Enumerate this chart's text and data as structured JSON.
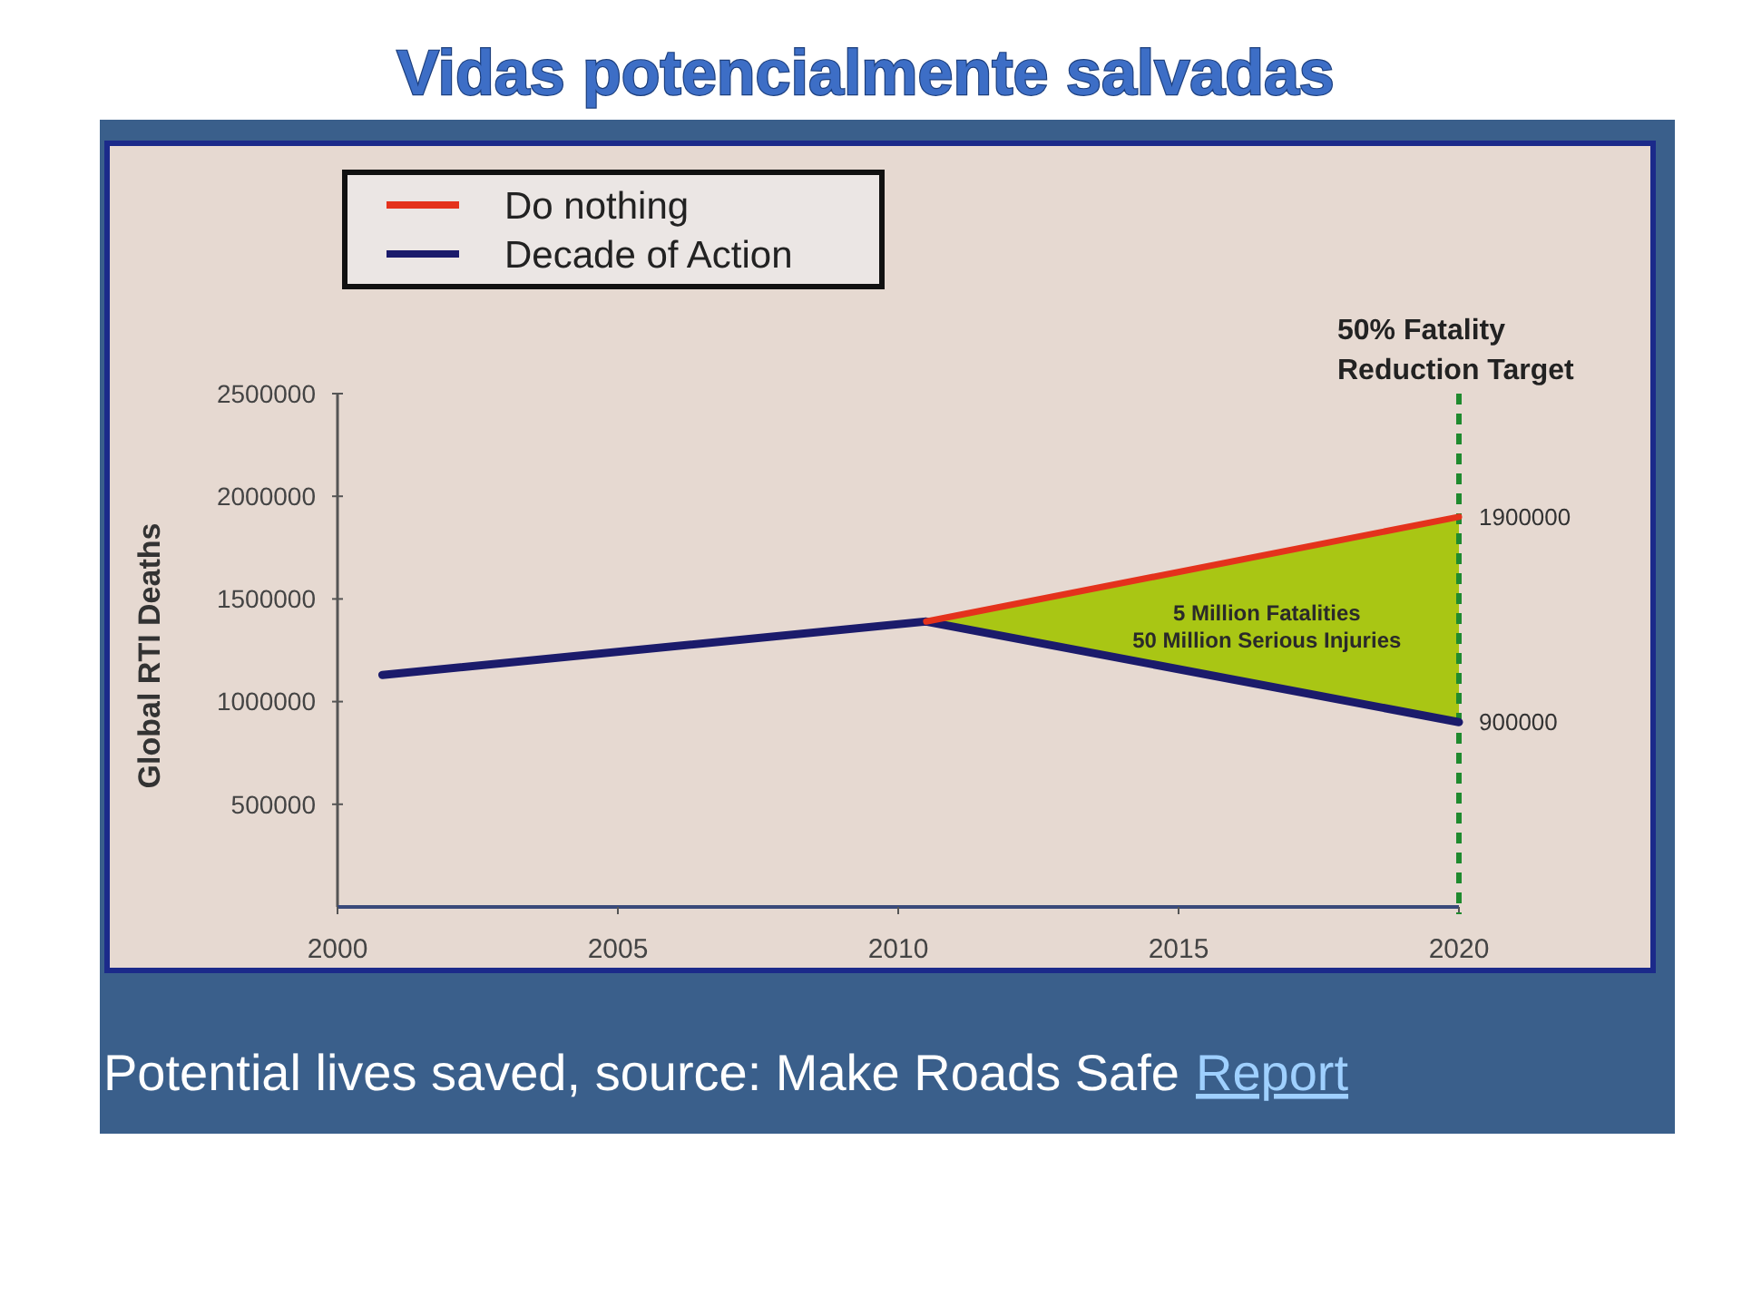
{
  "chart_data": {
    "type": "line",
    "title": "Vidas potencialmente salvadas",
    "ylabel": "Global RTI Deaths",
    "xlim": [
      2000,
      2020
    ],
    "xticks": [
      2000,
      2005,
      2010,
      2015,
      2020
    ],
    "ylim": [
      0,
      2500000
    ],
    "yticks": [
      500000,
      1000000,
      1500000,
      2000000,
      2500000
    ],
    "series": [
      {
        "name": "Do nothing",
        "color": "#e4321c",
        "x": [
          2010.5,
          2020
        ],
        "values": [
          1390000,
          1900000
        ],
        "lower": [
          1390000,
          900000
        ],
        "upper": [
          1390000,
          1900000
        ],
        "value_labels": [
          null,
          "1900000"
        ]
      },
      {
        "name": "Decade of Action",
        "color": "#1b1b6b",
        "x": [
          2000.8,
          2010.5,
          2020
        ],
        "values": [
          1130000,
          1390000,
          900000
        ],
        "value_labels": [
          null,
          null,
          "900000"
        ]
      }
    ],
    "ref_lines": [
      {
        "axis": "x",
        "value": 2020,
        "label": "50% Fatality\nReduction Target",
        "color": "#1f8a2e",
        "line_style": "dashed"
      }
    ],
    "annotations": [
      "5 Million Fatalities\n50 Million Serious Injuries",
      "Potential lives saved, source: Make Roads Safe",
      "Report"
    ],
    "legend": "top left",
    "line_style": "solid"
  }
}
